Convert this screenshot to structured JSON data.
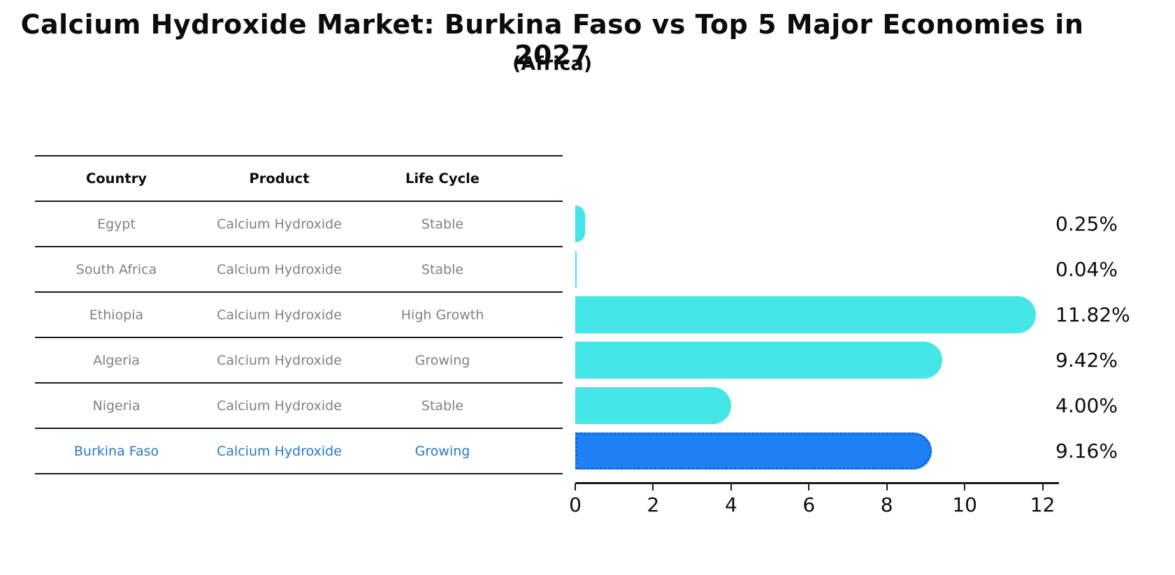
{
  "title": "Calcium Hydroxide Market: Burkina Faso vs Top 5 Major Economies in 2027",
  "subtitle": "(Africa)",
  "colors": {
    "bar_default": "#45e6e6",
    "bar_highlight": "#1e80f2",
    "bar_highlight_edge": "#1465d6",
    "table_text_gray": "#808080",
    "highlight_text_blue": "#2878c8",
    "line_black": "#1a1a1a",
    "ink": "#0c0c0c"
  },
  "table": {
    "headers": [
      "Country",
      "Product",
      "Life Cycle"
    ],
    "rows": [
      {
        "country": "Egypt",
        "product": "Calcium Hydroxide",
        "life_cycle": "Stable",
        "highlight": false
      },
      {
        "country": "South Africa",
        "product": "Calcium Hydroxide",
        "life_cycle": "Stable",
        "highlight": false
      },
      {
        "country": "Ethiopia",
        "product": "Calcium Hydroxide",
        "life_cycle": "High Growth",
        "highlight": false
      },
      {
        "country": "Algeria",
        "product": "Calcium Hydroxide",
        "life_cycle": "Growing",
        "highlight": false
      },
      {
        "country": "Nigeria",
        "product": "Calcium Hydroxide",
        "life_cycle": "Stable",
        "highlight": false
      },
      {
        "country": "Burkina Faso",
        "product": "Calcium Hydroxide",
        "life_cycle": "Growing",
        "highlight": true
      }
    ]
  },
  "chart_data": {
    "type": "bar",
    "orientation": "horizontal",
    "title": "Calcium Hydroxide Market: Burkina Faso vs Top 5 Major Economies in 2027",
    "subtitle": "(Africa)",
    "categories": [
      "Egypt",
      "South Africa",
      "Ethiopia",
      "Algeria",
      "Nigeria",
      "Burkina Faso"
    ],
    "values": [
      0.25,
      0.04,
      11.82,
      9.42,
      4.0,
      9.16
    ],
    "value_labels": [
      "0.25%",
      "0.04%",
      "11.82%",
      "9.42%",
      "4.00%",
      "9.16%"
    ],
    "highlight_index": 5,
    "xlabel": "",
    "ylabel": "",
    "xlim": [
      0,
      12.42
    ],
    "xticks": [
      0,
      2,
      4,
      6,
      8,
      10,
      12
    ],
    "grid": false,
    "legend": false
  }
}
